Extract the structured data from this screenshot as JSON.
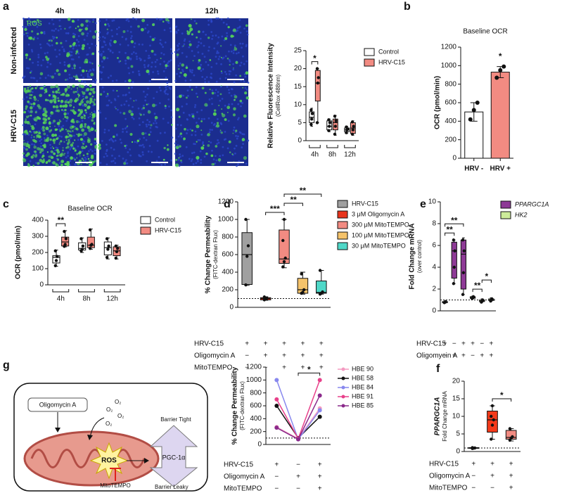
{
  "panels": [
    "a",
    "b",
    "c",
    "d",
    "e",
    "f",
    "g"
  ],
  "microscopy": {
    "columns": [
      "4h",
      "8h",
      "12h"
    ],
    "rows": [
      "Non-infected",
      "HRV-C15"
    ],
    "stain": "ROS"
  },
  "diagram": {
    "inhibitor": "Oligomycin A",
    "oxygen": [
      "O₂",
      "O₂",
      "O₂",
      "O₂"
    ],
    "ros": "ROS",
    "antioxidant": "MitoTEMPO",
    "regulator": "PGC-1α",
    "tight": "Barrier Tight",
    "leaky": "Barrier Leaky"
  },
  "chart_data": [
    {
      "type": "box",
      "ylabel": "Relative Fluorescence Intensity",
      "ylabel_sub": "(CellRox 488nm)",
      "categories": [
        "4h",
        "8h",
        "12h"
      ],
      "ylim": [
        0,
        25
      ],
      "yticks": [
        0,
        5,
        10,
        15,
        20,
        25
      ],
      "series": [
        {
          "name": "Control",
          "color": "#ffffff",
          "boxes": [
            {
              "min": 4,
              "q1": 5,
              "median": 6.5,
              "q3": 8,
              "max": 9,
              "points": [
                4.5,
                6,
                7.5,
                8.5
              ]
            },
            {
              "min": 2.5,
              "q1": 3,
              "median": 4,
              "q3": 5.5,
              "max": 6,
              "points": [
                2.8,
                4,
                5,
                5.8
              ]
            },
            {
              "min": 2,
              "q1": 2.5,
              "median": 3,
              "q3": 3.5,
              "max": 4,
              "points": [
                2.2,
                3,
                3.3,
                3.8
              ]
            }
          ]
        },
        {
          "name": "HRV-C15",
          "color": "#f28b82",
          "boxes": [
            {
              "min": 5,
              "q1": 11,
              "median": 16,
              "q3": 19.5,
              "max": 20,
              "points": [
                5,
                16,
                17.5,
                20
              ]
            },
            {
              "min": 1.5,
              "q1": 3,
              "median": 5,
              "q3": 6,
              "max": 7,
              "points": [
                1.8,
                4,
                5.5,
                6.8
              ]
            },
            {
              "min": 1.5,
              "q1": 2,
              "median": 3.5,
              "q3": 5,
              "max": 5.5,
              "points": [
                1.8,
                3,
                4,
                5.2
              ]
            }
          ]
        }
      ],
      "significance": [
        {
          "from": 0,
          "to": 1,
          "label": "*"
        }
      ]
    },
    {
      "type": "bar",
      "title": "Baseline OCR",
      "ylabel": "OCR (pmol/min)",
      "categories": [
        "HRV -",
        "HRV +"
      ],
      "values": [
        500,
        930
      ],
      "errors": [
        100,
        60
      ],
      "points": [
        [
          420,
          520,
          600
        ],
        [
          870,
          950,
          990
        ]
      ],
      "colors": [
        "#ffffff",
        "#f28b82"
      ],
      "ylim": [
        0,
        1200
      ],
      "yticks": [
        0,
        200,
        400,
        600,
        800,
        1000,
        1200
      ],
      "significance": [
        {
          "from": 1,
          "to": 1,
          "label": "*"
        }
      ]
    },
    {
      "type": "box",
      "title": "Baseline OCR",
      "ylabel": "OCR (pmol/min)",
      "categories": [
        "4h",
        "8h",
        "12h"
      ],
      "ylim": [
        0,
        400
      ],
      "yticks": [
        0,
        100,
        200,
        300,
        400
      ],
      "series": [
        {
          "name": "Control",
          "color": "#ffffff",
          "boxes": [
            {
              "min": 115,
              "q1": 135,
              "median": 170,
              "q3": 180,
              "max": 215,
              "points": [
                118,
                150,
                175,
                210
              ]
            },
            {
              "min": 200,
              "q1": 215,
              "median": 225,
              "q3": 260,
              "max": 290,
              "points": [
                210,
                220,
                240,
                285
              ]
            },
            {
              "min": 160,
              "q1": 185,
              "median": 230,
              "q3": 265,
              "max": 290,
              "points": [
                170,
                220,
                240,
                285
              ]
            }
          ]
        },
        {
          "name": "HRV-C15",
          "color": "#f28b82",
          "boxes": [
            {
              "min": 235,
              "q1": 240,
              "median": 265,
              "q3": 295,
              "max": 335,
              "points": [
                238,
                250,
                285,
                330
              ]
            },
            {
              "min": 220,
              "q1": 230,
              "median": 245,
              "q3": 295,
              "max": 345,
              "points": [
                225,
                245,
                250,
                340
              ]
            },
            {
              "min": 160,
              "q1": 180,
              "median": 210,
              "q3": 235,
              "max": 245,
              "points": [
                165,
                205,
                225,
                240
              ]
            }
          ]
        }
      ],
      "significance": [
        {
          "from": 0,
          "to": 1,
          "label": "**"
        }
      ]
    },
    {
      "type": "box",
      "ylabel": "% Change Permeability",
      "ylabel_sub": "(FITC-dextran Flux)",
      "ylim": [
        0,
        1200
      ],
      "yticks": [
        0,
        200,
        400,
        600,
        800,
        1000,
        1200
      ],
      "refline": 100,
      "series": [
        {
          "name": "HRV-C15",
          "color": "#a0a0a0",
          "boxes": [
            {
              "min": 250,
              "q1": 260,
              "median": 600,
              "q3": 850,
              "max": 1000,
              "points": [
                255,
                580,
                700,
                1000
              ]
            }
          ]
        },
        {
          "name": "3 μM Oligomycin A",
          "color": "#e8341c",
          "boxes": [
            {
              "min": 80,
              "q1": 85,
              "median": 100,
              "q3": 110,
              "max": 120,
              "points": [
                85,
                95,
                105,
                118
              ]
            }
          ]
        },
        {
          "name": "300 μM MitoTEMPO",
          "color": "#f28b82",
          "boxes": [
            {
              "min": 450,
              "q1": 500,
              "median": 550,
              "q3": 880,
              "max": 1000,
              "points": [
                460,
                520,
                560,
                760,
                1000
              ]
            }
          ]
        },
        {
          "name": "100 μM MitoTEMPO",
          "color": "#f5c36b",
          "boxes": [
            {
              "min": 150,
              "q1": 160,
              "median": 200,
              "q3": 330,
              "max": 400,
              "points": [
                160,
                170,
                200,
                380
              ]
            }
          ]
        },
        {
          "name": "30 μM MitoTEMPO",
          "color": "#4fd8c8",
          "boxes": [
            {
              "min": 150,
              "q1": 160,
              "median": 170,
              "q3": 300,
              "max": 420,
              "points": [
                150,
                160,
                175,
                420
              ]
            }
          ]
        }
      ],
      "significance": [
        {
          "from": 1,
          "to": 2,
          "label": "***"
        },
        {
          "from": 2,
          "to": 3,
          "label": "**"
        },
        {
          "from": 2,
          "to": 4,
          "label": "**"
        }
      ],
      "conditions": [
        {
          "label": "HRV-C15",
          "signs": [
            "+",
            "+",
            "+",
            "+",
            "+"
          ]
        },
        {
          "label": "Oligomycin A",
          "signs": [
            "−",
            "+",
            "+",
            "+",
            "+"
          ]
        },
        {
          "label": "MitoTEMPO",
          "signs": [
            "−",
            "−",
            "+",
            "+",
            "+"
          ]
        }
      ]
    },
    {
      "type": "box",
      "ylabel": "Fold Change mRNA",
      "ylabel_sub": "(over control)",
      "legend_italic": true,
      "ylim": [
        0,
        10
      ],
      "yticks": [
        0,
        2,
        4,
        6,
        8,
        10
      ],
      "refline": 1,
      "series": [
        {
          "name": "PPARGC1A",
          "color": "#8e3a96",
          "boxes": [
            {
              "min": 0.7,
              "q1": 0.75,
              "median": 0.8,
              "q3": 0.85,
              "max": 0.9,
              "points": [
                0.75,
                0.8,
                0.85
              ]
            },
            {
              "min": 2.5,
              "q1": 3,
              "median": 5.5,
              "q3": 6.3,
              "max": 6.5,
              "points": [
                2.5,
                4,
                5.5,
                6.5
              ]
            },
            {
              "min": 1.5,
              "q1": 2,
              "median": 5.2,
              "q3": 6.5,
              "max": 6.7,
              "points": [
                1.5,
                3.5,
                5.5,
                6.5
              ]
            }
          ]
        },
        {
          "name": "HK2",
          "color": "#cdec9a",
          "boxes": [
            {
              "min": 1.1,
              "q1": 1.15,
              "median": 1.2,
              "q3": 1.3,
              "max": 1.35,
              "points": [
                1.15,
                1.2,
                1.3
              ]
            },
            {
              "min": 0.8,
              "q1": 0.85,
              "median": 0.9,
              "q3": 1.0,
              "max": 1.1,
              "points": [
                0.8,
                0.9,
                1.0
              ]
            },
            {
              "min": 0.9,
              "q1": 0.95,
              "median": 1.0,
              "q3": 1.1,
              "max": 1.2,
              "points": [
                0.9,
                1.0,
                1.1
              ]
            }
          ]
        }
      ],
      "significance": [
        {
          "from": 0,
          "to": 1,
          "label": "**"
        },
        {
          "from": 0,
          "to": 2,
          "label": "**"
        },
        {
          "from": 3,
          "to": 4,
          "label": "**"
        },
        {
          "from": 4,
          "to": 5,
          "label": "*"
        }
      ],
      "conditions": [
        {
          "label": "HRV-C15",
          "signs": [
            "+",
            "−",
            "+",
            "+",
            "−",
            "+"
          ]
        },
        {
          "label": "Oligomycin A",
          "signs": [
            "−",
            "+",
            "+",
            "−",
            "+",
            "+"
          ]
        }
      ]
    },
    {
      "type": "box",
      "ylabel": "PPARGC1A",
      "ylabel_italic": true,
      "ylabel_sub": "Fold Change mRNA",
      "ylim": [
        0,
        20
      ],
      "yticks": [
        0,
        5,
        10,
        15,
        20
      ],
      "refline": 1,
      "series": [
        {
          "color": "#f0f0f0",
          "boxes": [
            {
              "min": 0.8,
              "q1": 0.9,
              "median": 1.0,
              "q3": 1.1,
              "max": 1.2,
              "points": [
                0.85,
                0.95,
                1.0,
                1.1
              ]
            }
          ]
        },
        {
          "color": "#f43a1a",
          "boxes": [
            {
              "min": 3.5,
              "q1": 5.5,
              "median": 9,
              "q3": 11.5,
              "max": 13,
              "points": [
                3.5,
                7.5,
                9,
                10,
                13
              ]
            }
          ]
        },
        {
          "color": "#f28b82",
          "boxes": [
            {
              "min": 3,
              "q1": 3.5,
              "median": 4,
              "q3": 6,
              "max": 6.5,
              "points": [
                3.2,
                3.8,
                4.2,
                6.5
              ]
            }
          ]
        }
      ],
      "significance": [
        {
          "from": 1,
          "to": 2,
          "label": "*"
        }
      ],
      "conditions": [
        {
          "label": "HRV-C15",
          "signs": [
            "+",
            "+",
            "+"
          ]
        },
        {
          "label": "Oligomycin A",
          "signs": [
            "−",
            "+",
            "+"
          ]
        },
        {
          "label": "MitoTEMPO",
          "signs": [
            "−",
            "−",
            "+"
          ]
        }
      ]
    },
    {
      "type": "line",
      "ylabel": "% Change Permeability",
      "ylabel_sub": "(FITC-dextran Flux)",
      "ylim": [
        0,
        1200
      ],
      "yticks": [
        0,
        200,
        400,
        600,
        800,
        1000,
        1200
      ],
      "refline": 100,
      "series": [
        {
          "name": "HBE 90",
          "color": "#f49ac1",
          "values": [
            270,
            90,
            560
          ]
        },
        {
          "name": "HBE 58",
          "color": "#111111",
          "values": [
            600,
            100,
            430
          ]
        },
        {
          "name": "HBE 84",
          "color": "#8888ee",
          "values": [
            1000,
            80,
            530
          ]
        },
        {
          "name": "HBE 91",
          "color": "#e8408a",
          "values": [
            700,
            90,
            1000
          ]
        },
        {
          "name": "HBE 85",
          "color": "#8b2a8b",
          "values": [
            260,
            80,
            760
          ]
        }
      ],
      "significance": [
        {
          "from": 1,
          "to": 2,
          "label": "*"
        }
      ],
      "conditions": [
        {
          "label": "HRV-C15",
          "signs": [
            "+",
            "−",
            "+"
          ]
        },
        {
          "label": "Oligomycin A",
          "signs": [
            "−",
            "+",
            "+"
          ]
        },
        {
          "label": "MitoTEMPO",
          "signs": [
            "−",
            "−",
            "+"
          ]
        }
      ]
    }
  ]
}
